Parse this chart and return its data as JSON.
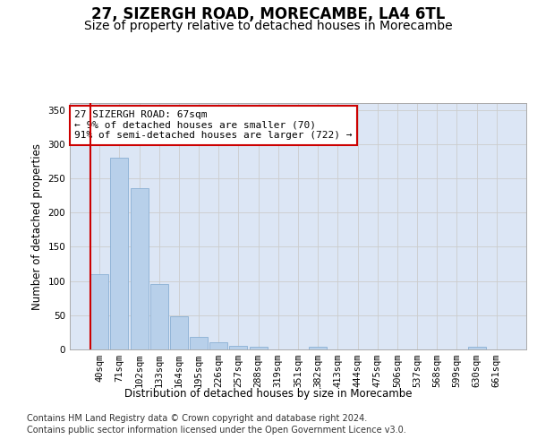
{
  "title": "27, SIZERGH ROAD, MORECAMBE, LA4 6TL",
  "subtitle": "Size of property relative to detached houses in Morecambe",
  "xlabel": "Distribution of detached houses by size in Morecambe",
  "ylabel": "Number of detached properties",
  "bar_labels": [
    "40sqm",
    "71sqm",
    "102sqm",
    "133sqm",
    "164sqm",
    "195sqm",
    "226sqm",
    "257sqm",
    "288sqm",
    "319sqm",
    "351sqm",
    "382sqm",
    "413sqm",
    "444sqm",
    "475sqm",
    "506sqm",
    "537sqm",
    "568sqm",
    "599sqm",
    "630sqm",
    "661sqm"
  ],
  "bar_values": [
    110,
    280,
    235,
    95,
    49,
    18,
    11,
    5,
    4,
    0,
    0,
    4,
    0,
    0,
    0,
    0,
    0,
    0,
    0,
    4,
    0
  ],
  "bar_color": "#b8d0ea",
  "bar_edge_color": "#8aafd4",
  "highlight_color": "#cc0000",
  "annotation_text": "27 SIZERGH ROAD: 67sqm\n← 9% of detached houses are smaller (70)\n91% of semi-detached houses are larger (722) →",
  "annotation_box_color": "#ffffff",
  "annotation_box_edge_color": "#cc0000",
  "ylim": [
    0,
    360
  ],
  "yticks": [
    0,
    50,
    100,
    150,
    200,
    250,
    300,
    350
  ],
  "grid_color": "#cccccc",
  "bg_color": "#dce6f5",
  "footer_line1": "Contains HM Land Registry data © Crown copyright and database right 2024.",
  "footer_line2": "Contains public sector information licensed under the Open Government Licence v3.0.",
  "title_fontsize": 12,
  "subtitle_fontsize": 10,
  "axis_label_fontsize": 8.5,
  "tick_fontsize": 7.5,
  "annotation_fontsize": 8,
  "footer_fontsize": 7
}
